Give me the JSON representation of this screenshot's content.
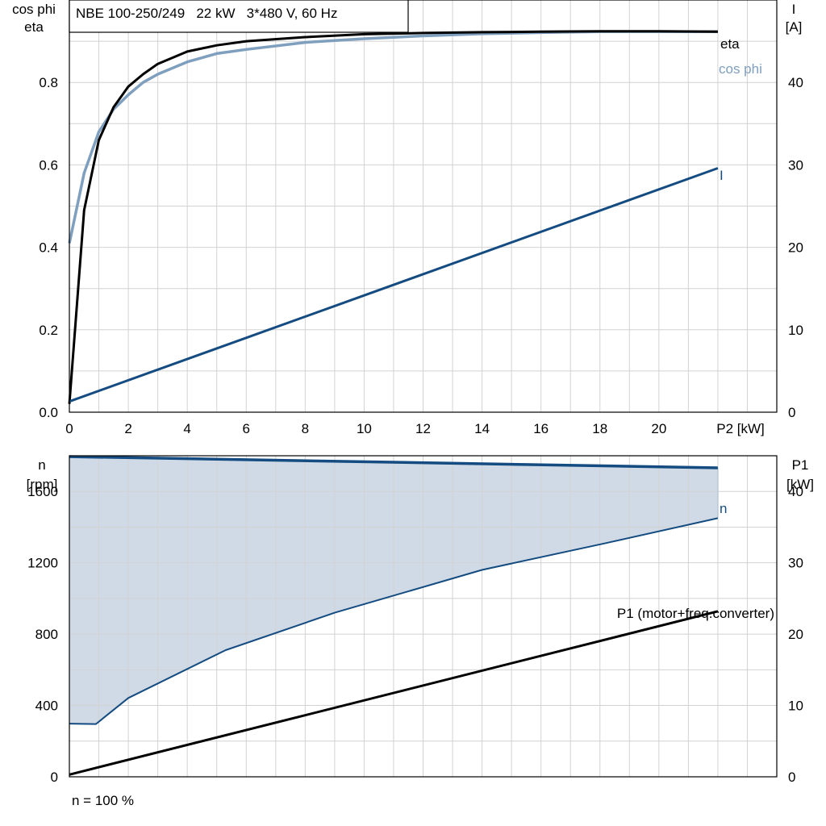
{
  "header": {
    "title": "NBE 100-250/249   22 kW   3*480 V, 60 Hz"
  },
  "colors": {
    "eta": "#000000",
    "cos_phi": "#7f9fbf",
    "current": "#144b80",
    "speed": "#144b80",
    "speed_band_fill": "#cfdae6",
    "p1": "#000000",
    "grid": "#d2d2d2"
  },
  "footer": {
    "note": "n = 100 %"
  },
  "chart_data": [
    {
      "type": "line",
      "panel": "top",
      "xlabel": "P2 [kW]",
      "ylabel_left": [
        "cos phi",
        "eta"
      ],
      "ylabel_right": [
        "I",
        "[A]"
      ],
      "xlim": [
        0,
        24
      ],
      "ylim_left": [
        0,
        1.0
      ],
      "ylim_right": [
        0,
        50
      ],
      "x_ticks": [
        0,
        2,
        4,
        6,
        8,
        10,
        12,
        14,
        16,
        18,
        20
      ],
      "x_tick_labels": [
        "0",
        "2",
        "4",
        "6",
        "8",
        "10",
        "12",
        "14",
        "16",
        "18",
        "20"
      ],
      "y_left_ticks": [
        0,
        0.2,
        0.4,
        0.6,
        0.8
      ],
      "y_left_tick_labels": [
        "0.0",
        "0.2",
        "0.4",
        "0.6",
        "0.8"
      ],
      "y_right_ticks": [
        0,
        10,
        20,
        30,
        40
      ],
      "y_right_tick_labels": [
        "0",
        "10",
        "20",
        "30",
        "40"
      ],
      "grid": true,
      "series": [
        {
          "name": "eta",
          "axis": "left",
          "x": [
            0,
            0.5,
            1,
            1.5,
            2,
            2.5,
            3,
            4,
            5,
            6,
            8,
            10,
            12,
            14,
            16,
            18,
            20,
            22
          ],
          "y": [
            0.02,
            0.49,
            0.66,
            0.74,
            0.79,
            0.82,
            0.845,
            0.875,
            0.89,
            0.9,
            0.91,
            0.917,
            0.92,
            0.922,
            0.923,
            0.924,
            0.924,
            0.923
          ]
        },
        {
          "name": "cos phi",
          "axis": "left",
          "x": [
            0,
            0.5,
            1,
            1.5,
            2,
            2.5,
            3,
            4,
            5,
            6,
            8,
            10,
            12,
            14,
            16,
            18,
            20,
            22
          ],
          "y": [
            0.41,
            0.58,
            0.68,
            0.735,
            0.77,
            0.8,
            0.82,
            0.85,
            0.87,
            0.88,
            0.897,
            0.906,
            0.913,
            0.918,
            0.921,
            0.923,
            0.923,
            0.923
          ]
        },
        {
          "name": "I",
          "axis": "right",
          "x": [
            0,
            22
          ],
          "y": [
            1.3,
            29.6
          ]
        }
      ]
    },
    {
      "type": "area",
      "panel": "bottom",
      "ylabel_left": [
        "n",
        "[rpm]"
      ],
      "ylabel_right": [
        "P1",
        "[kW]"
      ],
      "xlim": [
        0,
        24
      ],
      "ylim_left": [
        0,
        1800
      ],
      "ylim_right": [
        0,
        45
      ],
      "y_left_ticks": [
        0,
        400,
        800,
        1200,
        1600
      ],
      "y_left_tick_labels": [
        "0",
        "400",
        "800",
        "1200",
        "1600"
      ],
      "y_right_ticks": [
        0,
        10,
        20,
        30,
        40
      ],
      "y_right_tick_labels": [
        "0",
        "10",
        "20",
        "30",
        "40"
      ],
      "grid": true,
      "series": [
        {
          "name": "n",
          "axis": "left",
          "role": "upper",
          "x": [
            0,
            22
          ],
          "y": [
            1795,
            1732
          ]
        },
        {
          "axis": "left",
          "role": "lower",
          "x": [
            0,
            0.9,
            2,
            5.3,
            9,
            14,
            18.2,
            22
          ],
          "y": [
            298,
            296,
            442,
            710,
            920,
            1160,
            1310,
            1450
          ]
        },
        {
          "name": "P1 (motor+freq.converter)",
          "axis": "right",
          "x": [
            0,
            22
          ],
          "y": [
            0.3,
            23.2
          ]
        }
      ]
    }
  ]
}
